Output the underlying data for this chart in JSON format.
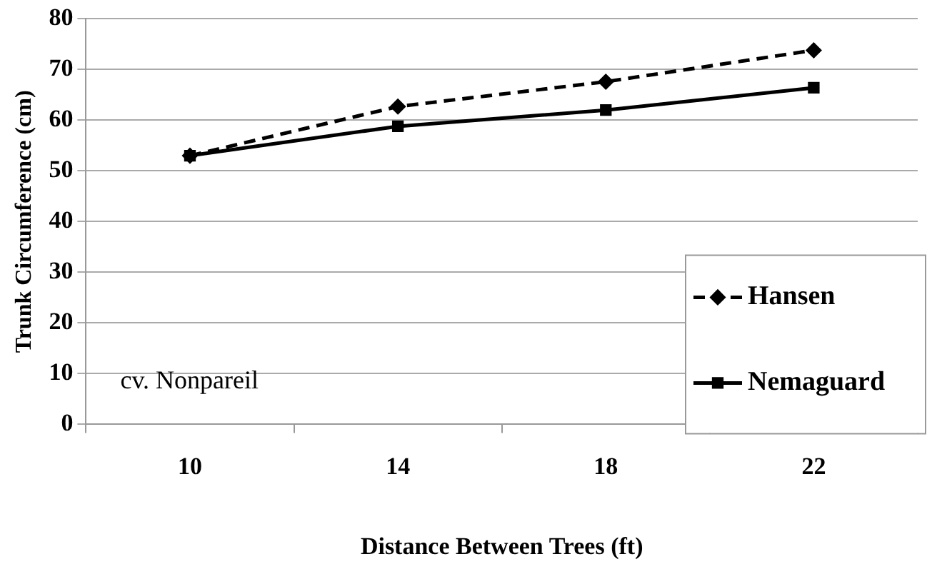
{
  "chart_data": {
    "type": "line",
    "xlabel": "Distance Between Trees (ft)",
    "ylabel": "Trunk Circumference (cm)",
    "categories": [
      "10",
      "14",
      "18",
      "22"
    ],
    "series": [
      {
        "name": "Hansen",
        "color": "#000000",
        "marker": "diamond",
        "line_style": "dashed",
        "values": [
          53,
          62.7,
          67.6,
          73.8
        ]
      },
      {
        "name": "Nemaguard",
        "color": "#000000",
        "marker": "square",
        "line_style": "solid",
        "values": [
          53,
          58.8,
          62,
          66.4
        ]
      }
    ],
    "ylim": [
      0,
      80
    ],
    "yticks": [
      0,
      10,
      20,
      30,
      40,
      50,
      60,
      70,
      80
    ],
    "grid": "y",
    "legend": "bottom right",
    "annotations": [
      "cv. Nonpareil"
    ]
  }
}
